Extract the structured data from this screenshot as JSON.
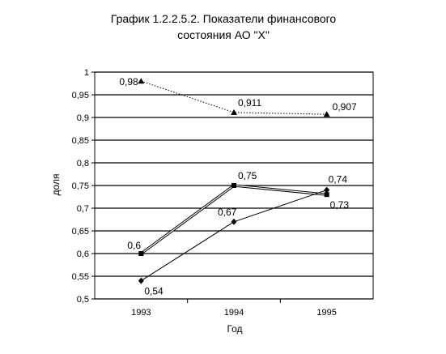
{
  "chart_data": {
    "type": "line",
    "title_lines": [
      "График 1.2.2.5.2.  Показатели финансового",
      "состояния АО \"Х\""
    ],
    "xlabel": "Год",
    "ylabel": "доля",
    "categories": [
      "1993",
      "1994",
      "1995"
    ],
    "ylim": [
      0.5,
      1.0
    ],
    "yticks": [
      0.5,
      0.55,
      0.6,
      0.65,
      0.7,
      0.75,
      0.8,
      0.85,
      0.9,
      0.95,
      1.0
    ],
    "ytick_labels": [
      "0,5",
      "0,55",
      "0,6",
      "0,65",
      "0,7",
      "0,75",
      "0,8",
      "0,85",
      "0,9",
      "0,95",
      "1"
    ],
    "grid": true,
    "series": [
      {
        "values": [
          0.98,
          0.911,
          0.907
        ],
        "labels": [
          "0,98",
          "0,911",
          "0,907"
        ],
        "marker": "triangle",
        "line": "dotted"
      },
      {
        "values": [
          0.6,
          0.75,
          0.73
        ],
        "labels": [
          "0,6",
          "0,75",
          "0,73"
        ],
        "marker": "square",
        "line": "double"
      },
      {
        "values": [
          0.54,
          0.67,
          0.74
        ],
        "labels": [
          "0,54",
          "0,67",
          "0,74"
        ],
        "marker": "diamond",
        "line": "solid"
      }
    ]
  }
}
